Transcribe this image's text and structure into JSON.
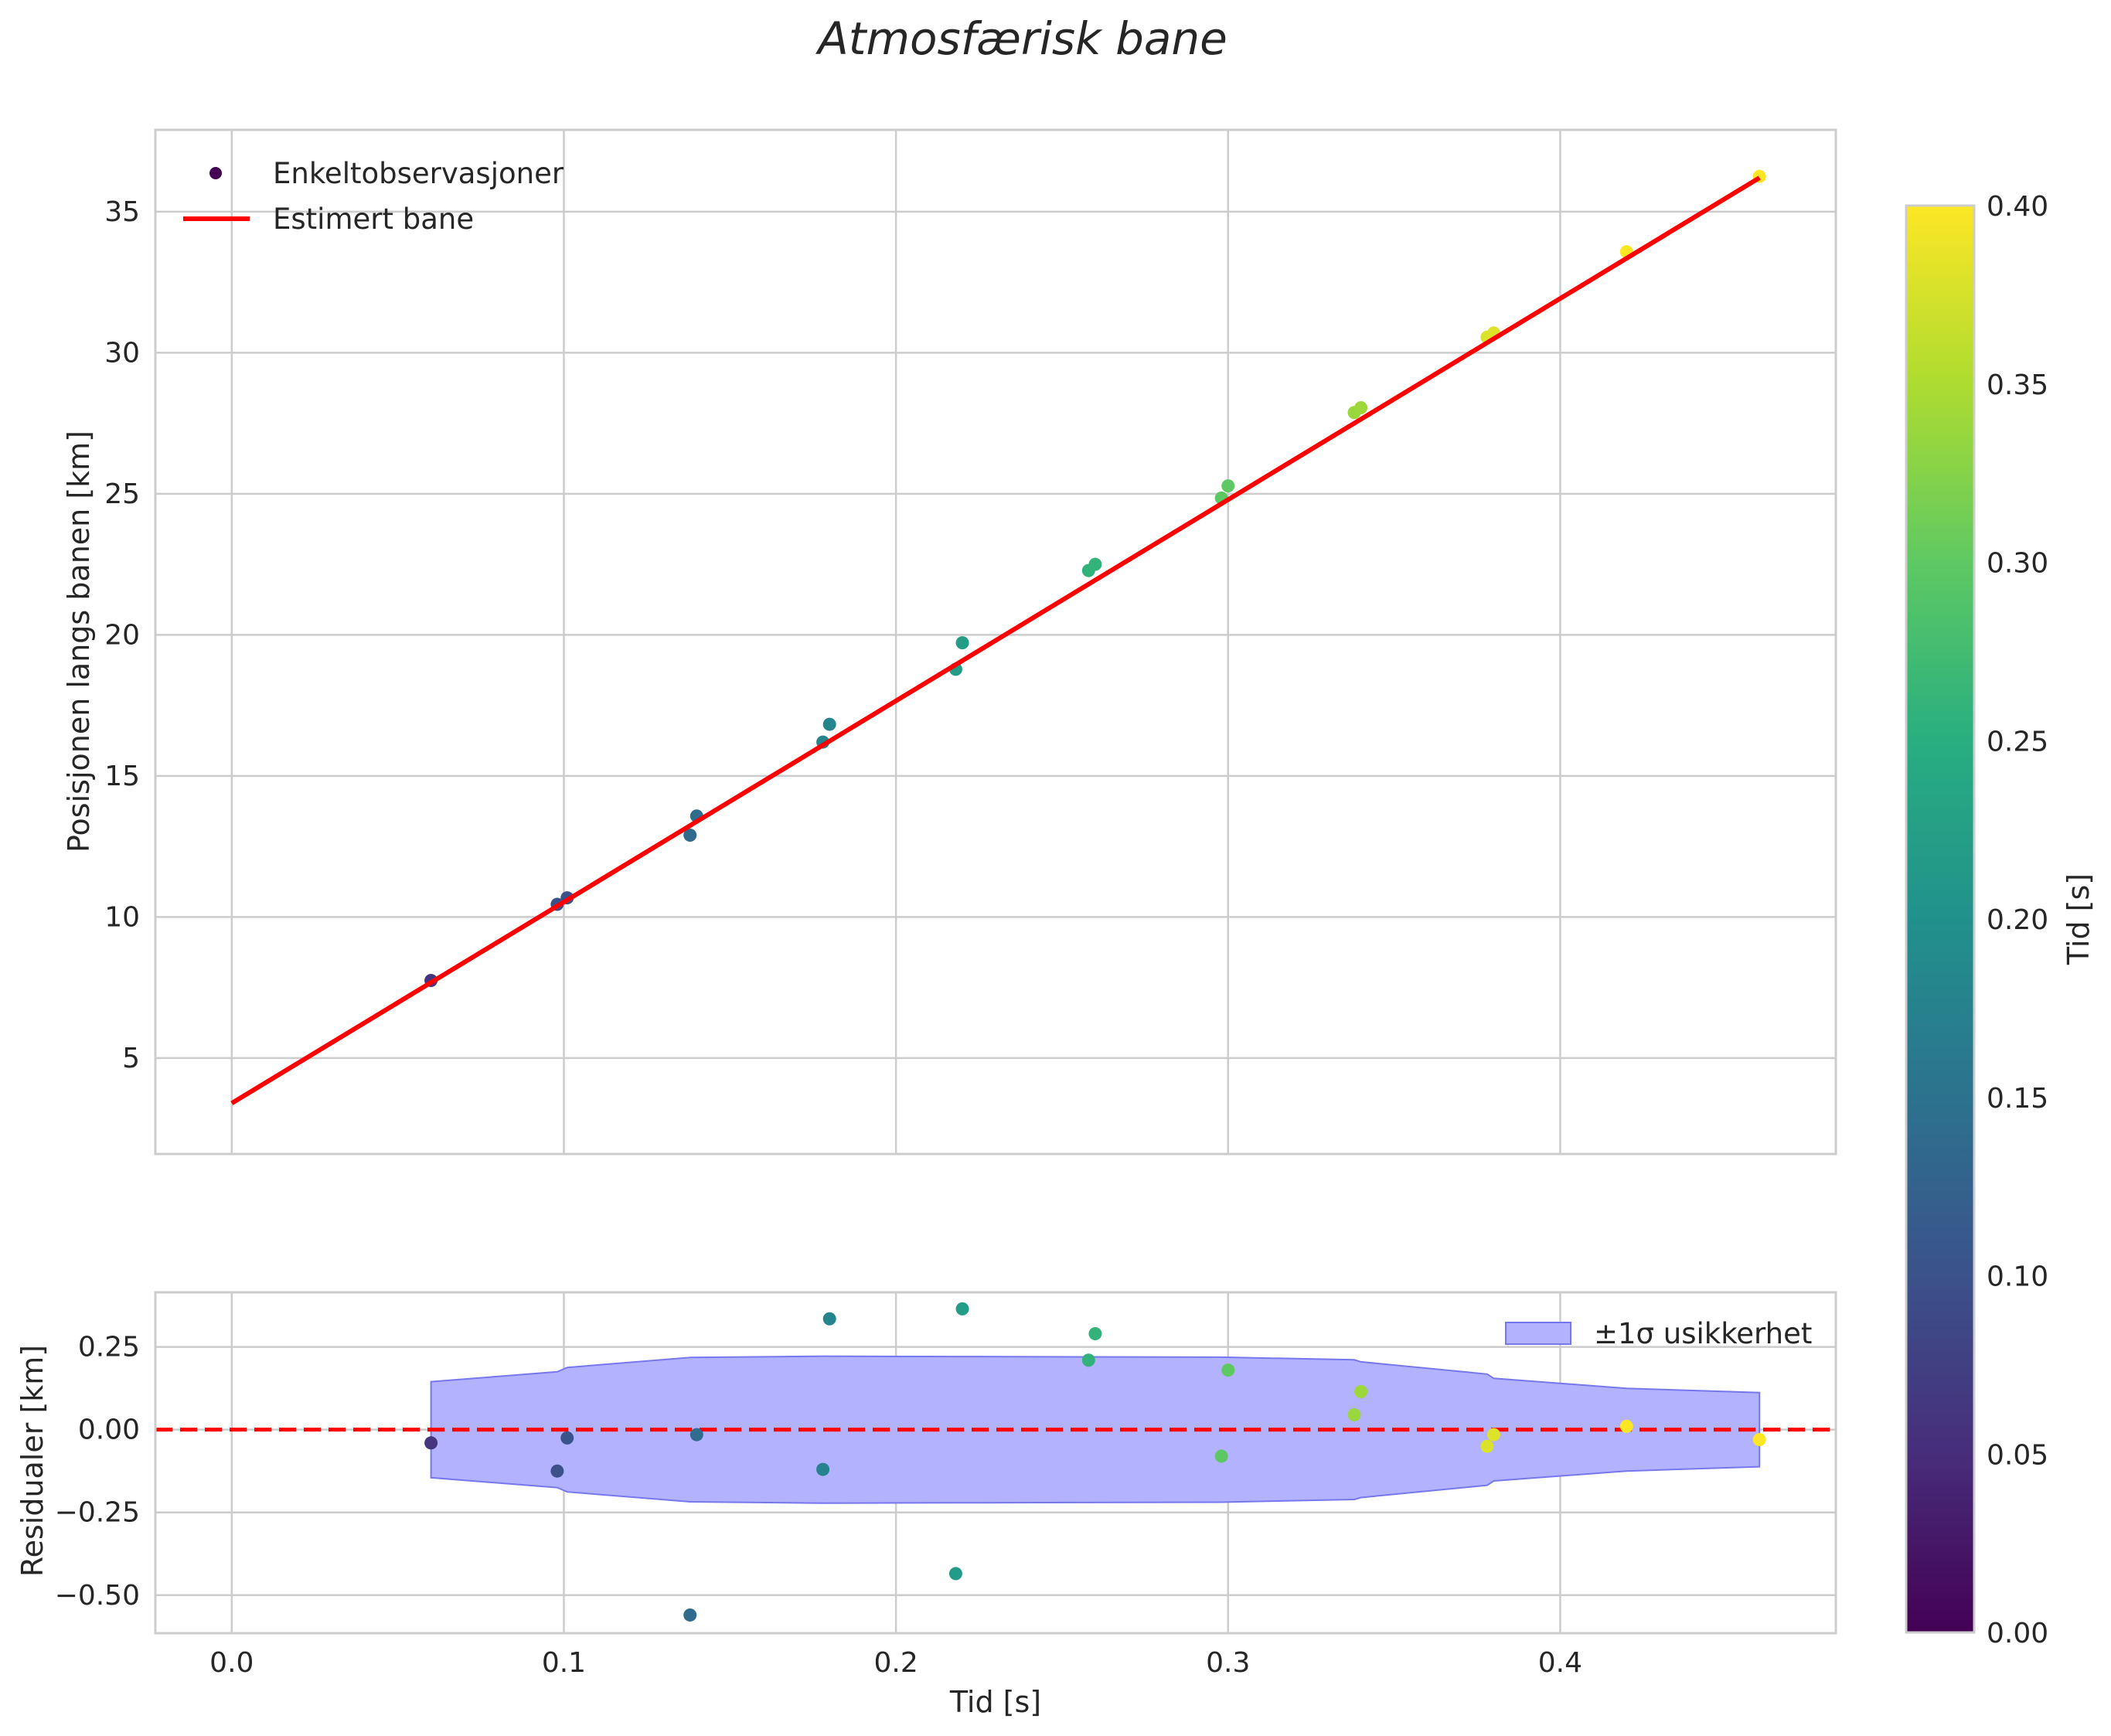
{
  "chart_data": {
    "type": "scatter",
    "title": "Atmosfærisk bane",
    "colors": {
      "fit_line": "#ff0000",
      "zero_line": "#ff0000",
      "band_fill": "#b2b2ff",
      "band_edge": "#7777ee",
      "grid": "#cccccc",
      "spine": "#cccccc",
      "colormap": "viridis"
    },
    "main_panel": {
      "ylabel": "Posisjonen langs banen [km]",
      "xlim": [
        -0.023,
        0.483
      ],
      "ylim": [
        1.6,
        37.9
      ],
      "xticks": [
        "0.0",
        "0.1",
        "0.2",
        "0.3",
        "0.4"
      ],
      "yticks": [
        "5",
        "10",
        "15",
        "20",
        "25",
        "30",
        "35"
      ],
      "grid": true,
      "legend_position": "upper-left",
      "legend": {
        "scatter_label": "Enkeltobservasjoner",
        "line_label": "Estimert bane"
      },
      "fit_line": {
        "x": [
          0.0,
          0.46
        ],
        "y": [
          3.4,
          36.2
        ]
      },
      "observations": [
        {
          "t": 0.06,
          "y": 7.75
        },
        {
          "t": 0.098,
          "y": 10.45
        },
        {
          "t": 0.101,
          "y": 10.68
        },
        {
          "t": 0.138,
          "y": 12.9
        },
        {
          "t": 0.14,
          "y": 13.58
        },
        {
          "t": 0.178,
          "y": 16.2
        },
        {
          "t": 0.18,
          "y": 16.83
        },
        {
          "t": 0.218,
          "y": 18.78
        },
        {
          "t": 0.22,
          "y": 19.72
        },
        {
          "t": 0.258,
          "y": 22.28
        },
        {
          "t": 0.26,
          "y": 22.5
        },
        {
          "t": 0.298,
          "y": 24.85
        },
        {
          "t": 0.3,
          "y": 25.28
        },
        {
          "t": 0.338,
          "y": 27.88
        },
        {
          "t": 0.34,
          "y": 28.05
        },
        {
          "t": 0.378,
          "y": 30.55
        },
        {
          "t": 0.38,
          "y": 30.7
        },
        {
          "t": 0.42,
          "y": 33.58
        },
        {
          "t": 0.46,
          "y": 36.25
        }
      ]
    },
    "residual_panel": {
      "xlabel": "Tid [s]",
      "ylabel": "Residualer [km]",
      "xlim": [
        -0.023,
        0.483
      ],
      "ylim": [
        -0.615,
        0.415
      ],
      "xticks": [
        "0.0",
        "0.1",
        "0.2",
        "0.3",
        "0.4"
      ],
      "yticks": [
        "0.25",
        "0.00",
        "−0.25",
        "−0.50"
      ],
      "grid": true,
      "legend_position": "upper-right",
      "band_label": "±1σ usikkerhet",
      "band": {
        "t": [
          0.06,
          0.098,
          0.101,
          0.138,
          0.178,
          0.218,
          0.258,
          0.298,
          0.338,
          0.34,
          0.378,
          0.38,
          0.42,
          0.46
        ],
        "sigma": [
          0.145,
          0.175,
          0.188,
          0.218,
          0.222,
          0.221,
          0.22,
          0.219,
          0.211,
          0.205,
          0.168,
          0.155,
          0.125,
          0.112
        ]
      },
      "residuals": [
        {
          "t": 0.06,
          "r": -0.04
        },
        {
          "t": 0.098,
          "r": -0.125
        },
        {
          "t": 0.101,
          "r": -0.025
        },
        {
          "t": 0.138,
          "r": -0.56
        },
        {
          "t": 0.14,
          "r": -0.015
        },
        {
          "t": 0.178,
          "r": -0.12
        },
        {
          "t": 0.18,
          "r": 0.335
        },
        {
          "t": 0.218,
          "r": -0.435
        },
        {
          "t": 0.22,
          "r": 0.365
        },
        {
          "t": 0.258,
          "r": 0.21
        },
        {
          "t": 0.26,
          "r": 0.29
        },
        {
          "t": 0.298,
          "r": -0.08
        },
        {
          "t": 0.3,
          "r": 0.18
        },
        {
          "t": 0.338,
          "r": 0.045
        },
        {
          "t": 0.34,
          "r": 0.115
        },
        {
          "t": 0.378,
          "r": -0.05
        },
        {
          "t": 0.38,
          "r": -0.015
        },
        {
          "t": 0.42,
          "r": 0.01
        },
        {
          "t": 0.46,
          "r": -0.03
        }
      ]
    },
    "colorbar": {
      "label": "Tid [s]",
      "range": [
        0.0,
        0.4
      ],
      "ticks": [
        "0.00",
        "0.05",
        "0.10",
        "0.15",
        "0.20",
        "0.25",
        "0.30",
        "0.35",
        "0.40"
      ]
    }
  }
}
